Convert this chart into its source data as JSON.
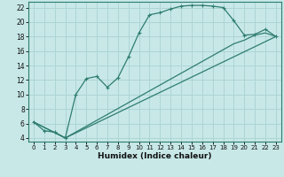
{
  "xlabel": "Humidex (Indice chaleur)",
  "background_color": "#c8e8e8",
  "grid_color": "#aed4d4",
  "line_color": "#2e7d6e",
  "xlim": [
    -0.5,
    23.5
  ],
  "ylim": [
    3.5,
    22.8
  ],
  "yticks": [
    4,
    6,
    8,
    10,
    12,
    14,
    16,
    18,
    20,
    22
  ],
  "xticks": [
    0,
    1,
    2,
    3,
    4,
    5,
    6,
    7,
    8,
    9,
    10,
    11,
    12,
    13,
    14,
    15,
    16,
    17,
    18,
    19,
    20,
    21,
    22,
    23
  ],
  "curve1_x": [
    0,
    1,
    2,
    3,
    4,
    5,
    6,
    7,
    8,
    9,
    10,
    11,
    12,
    13,
    14,
    15,
    16,
    17,
    18,
    19,
    20,
    21,
    22,
    23
  ],
  "curve1_y": [
    6.2,
    5.0,
    4.8,
    4.0,
    10.0,
    12.2,
    12.5,
    11.0,
    12.3,
    15.2,
    18.5,
    21.0,
    21.3,
    21.8,
    22.2,
    22.3,
    22.3,
    22.2,
    22.0,
    20.2,
    18.2,
    18.3,
    19.0,
    18.0
  ],
  "curve2_x": [
    0,
    3,
    23
  ],
  "curve2_y": [
    6.2,
    4.0,
    18.0
  ],
  "curve3_x": [
    0,
    3,
    19,
    20,
    21,
    22,
    23
  ],
  "curve3_y": [
    6.2,
    4.0,
    17.0,
    17.5,
    18.2,
    18.5,
    18.0
  ],
  "xlabel_fontsize": 6.5,
  "tick_fontsize_x": 5.0,
  "tick_fontsize_y": 5.5
}
